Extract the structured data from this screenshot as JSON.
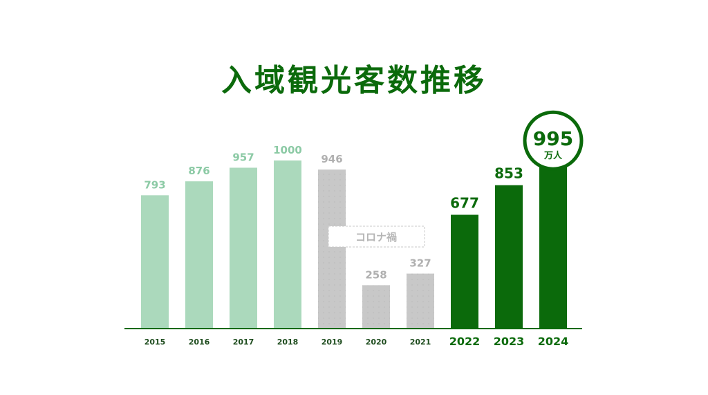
{
  "chart_data": {
    "type": "bar",
    "title": "入域観光客数推移",
    "categories": [
      "2015",
      "2016",
      "2017",
      "2018",
      "2019",
      "2020",
      "2021",
      "2022",
      "2023",
      "2024"
    ],
    "values": [
      793,
      876,
      957,
      1000,
      946,
      258,
      327,
      677,
      853,
      995
    ],
    "value_labels": [
      "793",
      "876",
      "957",
      "1000",
      "946",
      "258",
      "327",
      "677",
      "853",
      "995"
    ],
    "unit": "万人",
    "ylim": [
      0,
      1000
    ],
    "grid": false,
    "annotation": "コロナ禍",
    "colors": {
      "pre_covid": "#abd9bc",
      "covid": "#c8c8c8",
      "post_covid": "#0b6a0b",
      "axis": "#0b6a0b",
      "pre_label": "#8ccaa5",
      "covid_label": "#b0b0b0",
      "tick_small": "#1f4d1f"
    },
    "groups": [
      "pre",
      "pre",
      "pre",
      "pre",
      "covid",
      "covid",
      "covid",
      "post",
      "post",
      "post"
    ]
  }
}
